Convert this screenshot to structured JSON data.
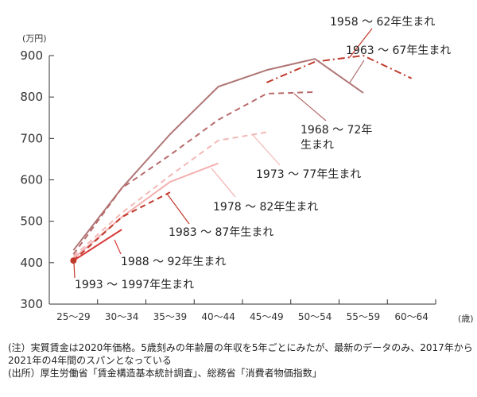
{
  "chart_data": {
    "type": "line",
    "y_unit": "(万円)",
    "x_unit": "(歳)",
    "ylim": [
      300,
      900
    ],
    "yticks": [
      300,
      400,
      500,
      600,
      700,
      800,
      900
    ],
    "categories": [
      "25～29",
      "30～34",
      "35～39",
      "40～44",
      "45～49",
      "50～54",
      "55～59",
      "60～64"
    ],
    "series": [
      {
        "name": "1958 ～ 62年生まれ",
        "color": "#c0392b",
        "dash": "dashdot",
        "x": [
          4,
          5,
          6,
          7
        ],
        "values": [
          835,
          885,
          900,
          845
        ]
      },
      {
        "name": "1963 ～ 67年生まれ",
        "color": "#b07676",
        "dash": "solid",
        "x": [
          0,
          1,
          2,
          3,
          4,
          5,
          6
        ],
        "values": [
          430,
          580,
          710,
          825,
          865,
          892,
          810
        ]
      },
      {
        "name": "1968 ～ 72年生まれ",
        "color": "#b86b6b",
        "dash": "dashed",
        "x": [
          0,
          1,
          2,
          3,
          4,
          5
        ],
        "values": [
          420,
          580,
          660,
          745,
          808,
          812
        ]
      },
      {
        "name": "1973 ～ 77年生まれ",
        "color": "#f3b8b8",
        "dash": "dashed",
        "x": [
          0,
          1,
          2,
          3,
          4
        ],
        "values": [
          415,
          520,
          610,
          695,
          715
        ]
      },
      {
        "name": "1978 ～ 82年生まれ",
        "color": "#f3b0b0",
        "dash": "solid",
        "x": [
          0,
          1,
          2,
          3
        ],
        "values": [
          410,
          510,
          595,
          640
        ]
      },
      {
        "name": "1983 ～ 87年生まれ",
        "color": "#c0392b",
        "dash": "dashed",
        "x": [
          0,
          1,
          2
        ],
        "values": [
          405,
          510,
          570
        ]
      },
      {
        "name": "1988 ～ 92年生まれ",
        "color": "#d93a3a",
        "dash": "solid",
        "x": [
          0,
          1
        ],
        "values": [
          405,
          480
        ]
      },
      {
        "name": "1993 ～ 1997年生まれ",
        "color": "#c0392b",
        "dash": "point",
        "x": [
          0
        ],
        "values": [
          405
        ]
      }
    ],
    "grid": false,
    "legend": "inline labels with leader lines"
  },
  "notes": {
    "note": "(注）実質賃金は2020年価格。5歳刻みの年齢層の年収を5年ごとにみたが、最新のデータのみ、2017年から2021年の4年間のスパンとなっている",
    "source": "(出所）厚生労働省「賃金構造基本統計調査」、総務省「消費者物価指数」"
  }
}
